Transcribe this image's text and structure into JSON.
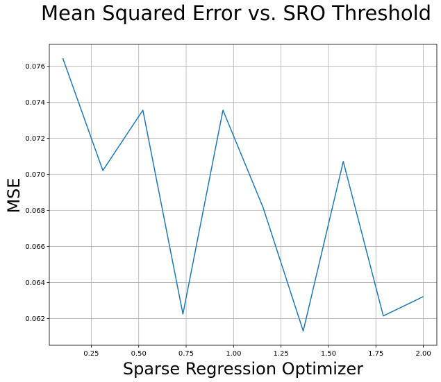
{
  "chart_data": {
    "type": "line",
    "title": "Mean Squared Error vs. SRO Threshold",
    "xlabel": "Sparse Regression Optimizer",
    "ylabel": "MSE",
    "xlim": [
      0.0289,
      2.0711
    ],
    "ylim": [
      0.06052,
      0.07722
    ],
    "xticks": [
      0.25,
      0.5,
      0.75,
      1.0,
      1.25,
      1.5,
      1.75,
      2.0
    ],
    "xtick_labels": [
      "0.25",
      "0.50",
      "0.75",
      "1.00",
      "1.25",
      "1.50",
      "1.75",
      "2.00"
    ],
    "yticks": [
      0.062,
      0.064,
      0.066,
      0.068,
      0.07,
      0.072,
      0.074,
      0.076
    ],
    "ytick_labels": [
      "0.062",
      "0.064",
      "0.066",
      "0.068",
      "0.070",
      "0.072",
      "0.074",
      "0.076"
    ],
    "grid": true,
    "series": [
      {
        "color": "#1f77b4",
        "x": [
          0.1,
          0.311,
          0.522,
          0.733,
          0.944,
          1.156,
          1.367,
          1.578,
          1.789,
          2.0
        ],
        "y": [
          0.07645,
          0.07022,
          0.07357,
          0.06225,
          0.07357,
          0.06815,
          0.06131,
          0.07072,
          0.06215,
          0.06322
        ]
      }
    ]
  }
}
